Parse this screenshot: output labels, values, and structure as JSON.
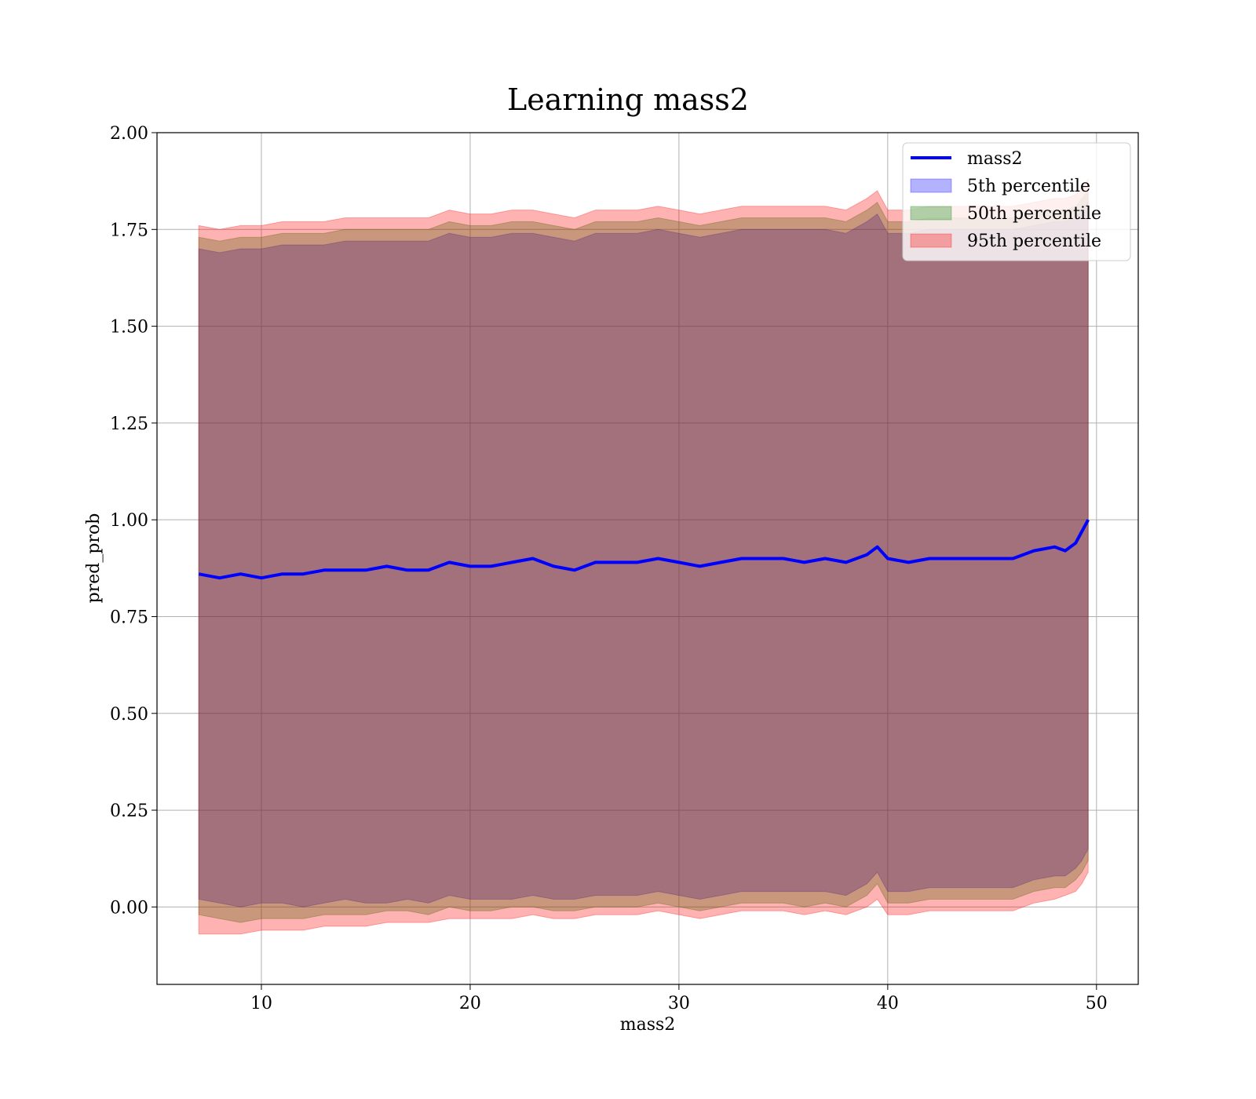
{
  "chart_data": {
    "type": "area",
    "title": "Learning mass2",
    "xlabel": "mass2",
    "ylabel": "pred_prob",
    "xlim": [
      5,
      52
    ],
    "ylim": [
      -0.2,
      2.0
    ],
    "grid": true,
    "legend_position": "top-right",
    "x_ticks": [
      10,
      20,
      30,
      40,
      50
    ],
    "y_ticks": [
      0.0,
      0.25,
      0.5,
      0.75,
      1.0,
      1.25,
      1.5,
      1.75,
      2.0
    ],
    "x_tick_labels": [
      "10",
      "20",
      "30",
      "40",
      "50"
    ],
    "y_tick_labels": [
      "0.00",
      "0.25",
      "0.50",
      "0.75",
      "1.00",
      "1.25",
      "1.50",
      "1.75",
      "2.00"
    ],
    "x": [
      7,
      8,
      9,
      10,
      11,
      12,
      13,
      14,
      15,
      16,
      17,
      18,
      19,
      20,
      21,
      22,
      23,
      24,
      25,
      26,
      27,
      28,
      29,
      30,
      31,
      32,
      33,
      34,
      35,
      36,
      37,
      38,
      39,
      39.5,
      40,
      41,
      42,
      43,
      44,
      45,
      46,
      47,
      48,
      48.5,
      49,
      49.3,
      49.6
    ],
    "series": [
      {
        "name": "mass2",
        "kind": "line",
        "color": "#0000ff",
        "values": [
          0.86,
          0.85,
          0.86,
          0.85,
          0.86,
          0.86,
          0.87,
          0.87,
          0.87,
          0.88,
          0.87,
          0.87,
          0.89,
          0.88,
          0.88,
          0.89,
          0.9,
          0.88,
          0.87,
          0.89,
          0.89,
          0.89,
          0.9,
          0.89,
          0.88,
          0.89,
          0.9,
          0.9,
          0.9,
          0.89,
          0.9,
          0.89,
          0.91,
          0.93,
          0.9,
          0.89,
          0.9,
          0.9,
          0.9,
          0.9,
          0.9,
          0.92,
          0.93,
          0.92,
          0.94,
          0.97,
          1.0
        ]
      },
      {
        "name": "5th percentile",
        "kind": "band",
        "color": "#0000ff",
        "lower": [
          0.02,
          0.01,
          0.0,
          0.01,
          0.01,
          0.0,
          0.01,
          0.02,
          0.01,
          0.01,
          0.02,
          0.01,
          0.03,
          0.02,
          0.02,
          0.02,
          0.03,
          0.02,
          0.02,
          0.03,
          0.03,
          0.03,
          0.04,
          0.03,
          0.02,
          0.03,
          0.04,
          0.04,
          0.04,
          0.04,
          0.04,
          0.03,
          0.06,
          0.09,
          0.04,
          0.04,
          0.05,
          0.05,
          0.05,
          0.05,
          0.05,
          0.07,
          0.08,
          0.08,
          0.1,
          0.12,
          0.15
        ],
        "upper": [
          1.7,
          1.69,
          1.7,
          1.7,
          1.71,
          1.71,
          1.71,
          1.72,
          1.72,
          1.72,
          1.72,
          1.72,
          1.74,
          1.73,
          1.73,
          1.74,
          1.74,
          1.73,
          1.72,
          1.74,
          1.74,
          1.74,
          1.75,
          1.74,
          1.73,
          1.74,
          1.75,
          1.75,
          1.75,
          1.75,
          1.75,
          1.74,
          1.77,
          1.79,
          1.74,
          1.74,
          1.75,
          1.75,
          1.75,
          1.75,
          1.75,
          1.76,
          1.77,
          1.77,
          1.78,
          1.8,
          1.82
        ]
      },
      {
        "name": "50th percentile",
        "kind": "band",
        "color": "#008000",
        "lower": [
          -0.02,
          -0.03,
          -0.04,
          -0.03,
          -0.03,
          -0.03,
          -0.02,
          -0.02,
          -0.02,
          -0.01,
          -0.01,
          -0.02,
          0.0,
          -0.01,
          -0.01,
          0.0,
          0.0,
          -0.01,
          -0.01,
          0.0,
          0.0,
          0.0,
          0.01,
          0.0,
          -0.01,
          0.0,
          0.01,
          0.01,
          0.01,
          0.0,
          0.01,
          0.0,
          0.03,
          0.06,
          0.01,
          0.01,
          0.02,
          0.02,
          0.02,
          0.02,
          0.02,
          0.04,
          0.05,
          0.05,
          0.07,
          0.09,
          0.12
        ],
        "upper": [
          1.73,
          1.72,
          1.73,
          1.73,
          1.74,
          1.74,
          1.74,
          1.75,
          1.75,
          1.75,
          1.75,
          1.75,
          1.77,
          1.76,
          1.76,
          1.77,
          1.77,
          1.76,
          1.75,
          1.77,
          1.77,
          1.77,
          1.78,
          1.77,
          1.76,
          1.77,
          1.78,
          1.78,
          1.78,
          1.78,
          1.78,
          1.77,
          1.8,
          1.82,
          1.77,
          1.77,
          1.78,
          1.78,
          1.78,
          1.78,
          1.78,
          1.79,
          1.8,
          1.8,
          1.81,
          1.83,
          1.85
        ]
      },
      {
        "name": "95th percentile",
        "kind": "band",
        "color": "#ff0000",
        "lower": [
          -0.07,
          -0.07,
          -0.07,
          -0.06,
          -0.06,
          -0.06,
          -0.05,
          -0.05,
          -0.05,
          -0.04,
          -0.04,
          -0.04,
          -0.03,
          -0.03,
          -0.03,
          -0.03,
          -0.02,
          -0.03,
          -0.03,
          -0.02,
          -0.02,
          -0.02,
          -0.01,
          -0.02,
          -0.03,
          -0.02,
          -0.01,
          -0.01,
          -0.01,
          -0.02,
          -0.01,
          -0.02,
          0.0,
          0.02,
          -0.02,
          -0.02,
          -0.01,
          -0.01,
          -0.01,
          -0.01,
          -0.01,
          0.01,
          0.02,
          0.03,
          0.04,
          0.06,
          0.09
        ],
        "upper": [
          1.76,
          1.75,
          1.76,
          1.76,
          1.77,
          1.77,
          1.77,
          1.78,
          1.78,
          1.78,
          1.78,
          1.78,
          1.8,
          1.79,
          1.79,
          1.8,
          1.8,
          1.79,
          1.78,
          1.8,
          1.8,
          1.8,
          1.81,
          1.8,
          1.79,
          1.8,
          1.81,
          1.81,
          1.81,
          1.81,
          1.81,
          1.8,
          1.83,
          1.85,
          1.8,
          1.8,
          1.81,
          1.81,
          1.81,
          1.81,
          1.81,
          1.82,
          1.83,
          1.83,
          1.84,
          1.86,
          1.88
        ]
      }
    ]
  }
}
